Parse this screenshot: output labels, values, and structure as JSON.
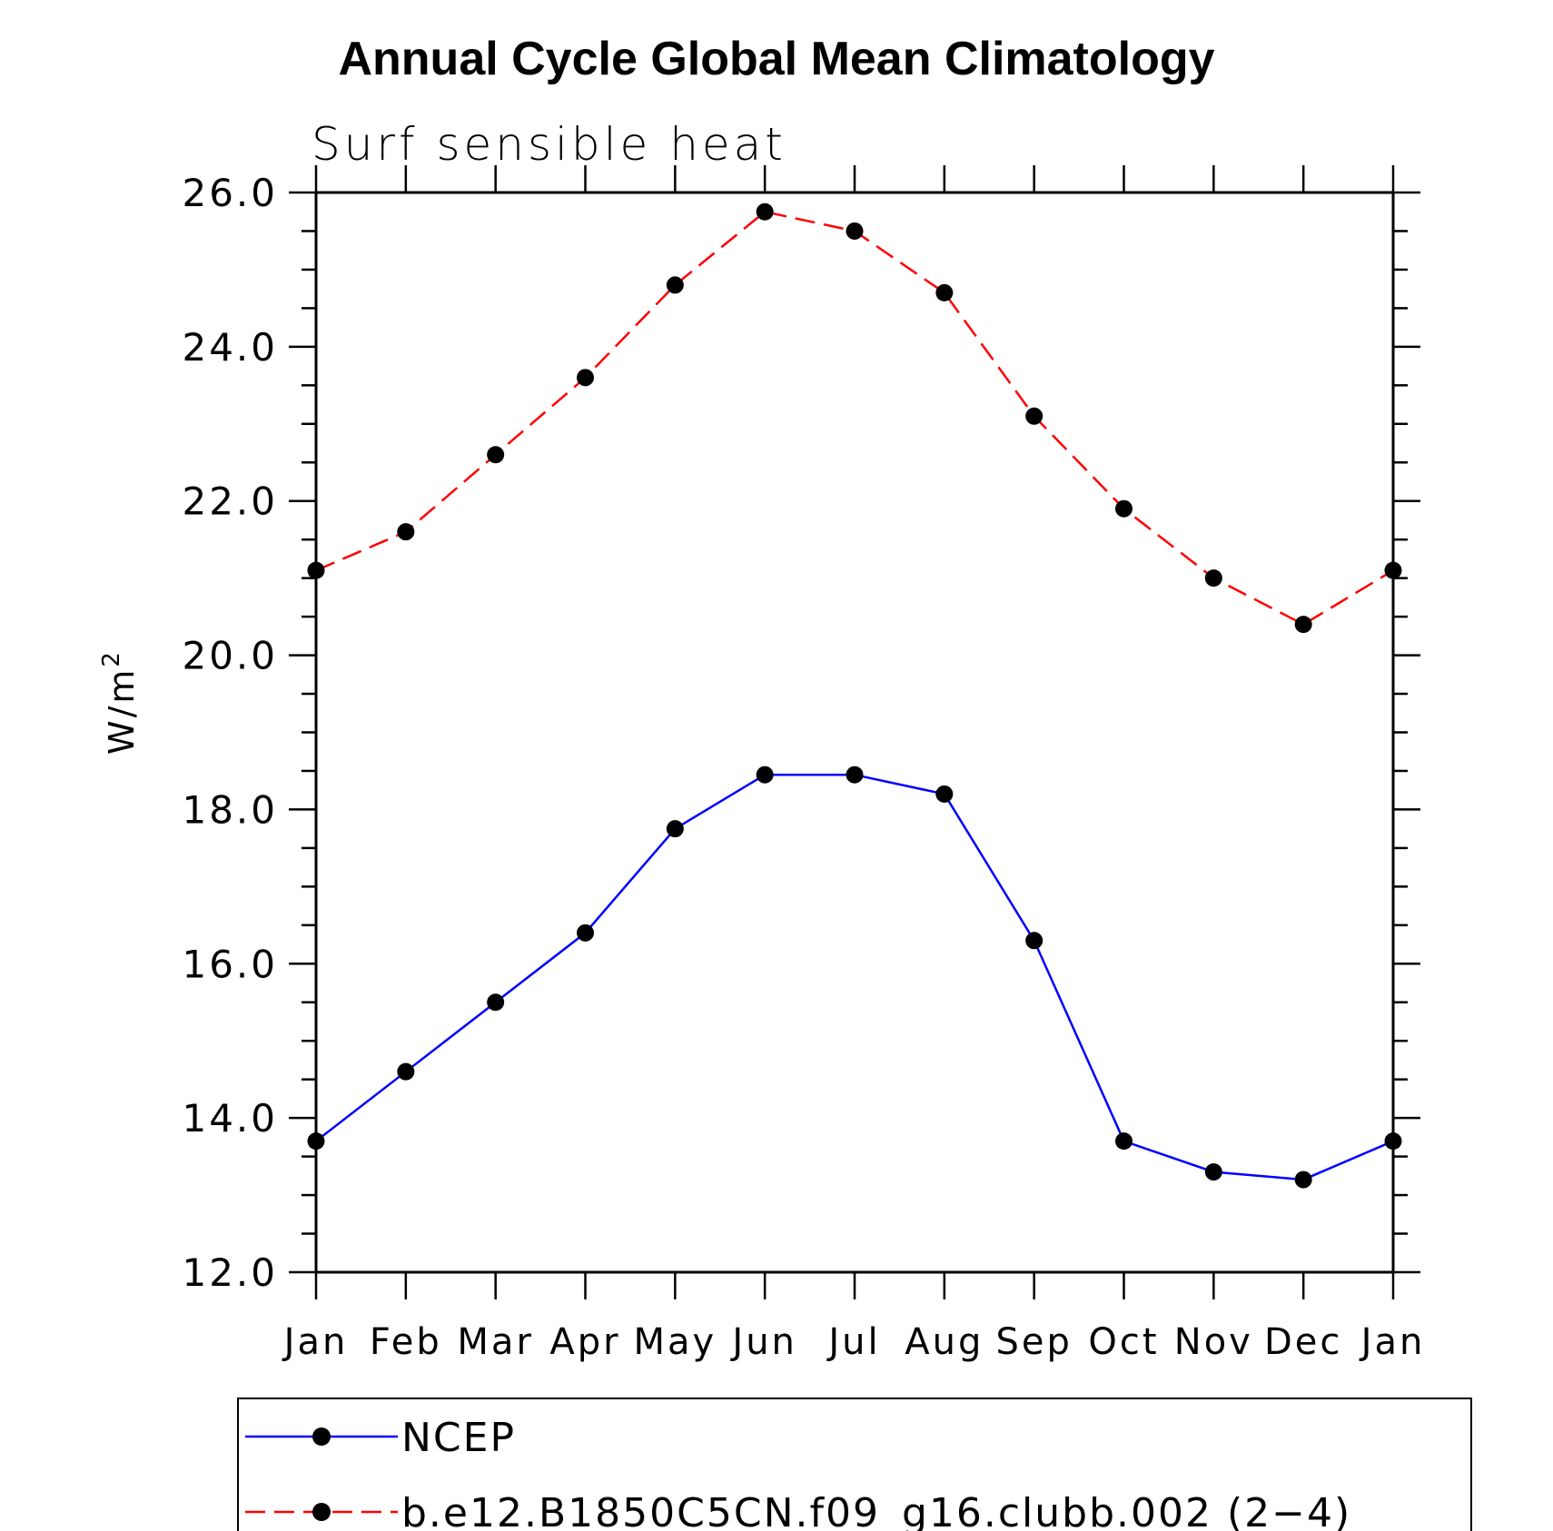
{
  "chart_data": {
    "type": "line",
    "title": "Annual Cycle Global Mean Climatology",
    "subtitle": "Surf  sensible  heat",
    "ylabel": "W/m",
    "ylabel_superscript": "2",
    "categories": [
      "Jan",
      "Feb",
      "Mar",
      "Apr",
      "May",
      "Jun",
      "Jul",
      "Aug",
      "Sep",
      "Oct",
      "Nov",
      "Dec",
      "Jan"
    ],
    "ylim": [
      12.0,
      26.0
    ],
    "yticks": [
      12.0,
      14.0,
      16.0,
      18.0,
      20.0,
      22.0,
      24.0,
      26.0
    ],
    "ytick_labels": [
      "12.0",
      "14.0",
      "16.0",
      "18.0",
      "20.0",
      "22.0",
      "24.0",
      "26.0"
    ],
    "y_minor_step": 0.5,
    "grid": false,
    "legend_position": "bottom",
    "series": [
      {
        "name": "NCEP",
        "color": "#0000ff",
        "dash": "solid",
        "marker": "filled-circle",
        "values": [
          13.7,
          14.6,
          15.5,
          16.4,
          17.75,
          18.45,
          18.45,
          18.2,
          16.3,
          13.7,
          13.3,
          13.2,
          13.7
        ]
      },
      {
        "name": "b.e12.B1850C5CN.f09_g16.clubb.002 (2−4)",
        "color": "#ff0000",
        "dash": "dashed",
        "marker": "filled-circle",
        "values": [
          21.1,
          21.6,
          22.6,
          23.6,
          24.8,
          25.75,
          25.5,
          24.7,
          23.1,
          21.9,
          21.0,
          20.4,
          21.1
        ]
      }
    ]
  }
}
